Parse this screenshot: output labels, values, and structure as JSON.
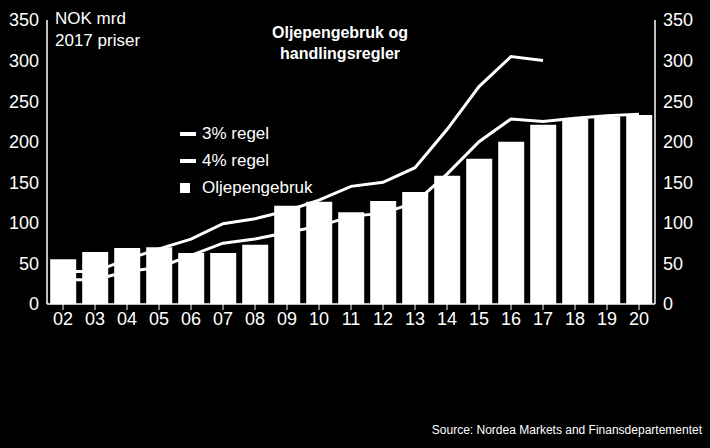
{
  "chart_data": {
    "type": "bar",
    "title": "Oljepengebruk og\nhandlingsregler",
    "ylabel": "NOK mrd\n2017 priser",
    "source": "Source: Nordea Markets and Finansdepartementet",
    "categories": [
      "02",
      "03",
      "04",
      "05",
      "06",
      "07",
      "08",
      "09",
      "10",
      "11",
      "12",
      "13",
      "14",
      "15",
      "16",
      "17",
      "18",
      "19",
      "20"
    ],
    "series": [
      {
        "name": "3% regel",
        "type": "line",
        "color": "#ffffff",
        "values": [
          30,
          30,
          40,
          45,
          60,
          75,
          80,
          88,
          96,
          108,
          112,
          125,
          160,
          200,
          228,
          225,
          229,
          232,
          234
        ]
      },
      {
        "name": "4% regel",
        "type": "line",
        "color": "#ffffff",
        "values": [
          40,
          40,
          55,
          68,
          80,
          99,
          105,
          115,
          128,
          145,
          150,
          168,
          215,
          268,
          305,
          300,
          null,
          null,
          null
        ]
      },
      {
        "name": "Oljepengebruk",
        "type": "bar",
        "color": "#ffffff",
        "values": [
          55,
          64,
          69,
          70,
          63,
          63,
          73,
          121,
          126,
          113,
          127,
          138,
          158,
          179,
          200,
          221,
          228,
          231,
          233
        ]
      }
    ],
    "ylim": [
      0,
      350
    ],
    "yticks": [
      0,
      50,
      100,
      150,
      200,
      250,
      300,
      350
    ],
    "y2lim": [
      0,
      350
    ],
    "y2ticks": [
      0,
      50,
      100,
      150,
      200,
      250,
      300,
      350
    ],
    "grid": false,
    "legend": "upper left"
  }
}
